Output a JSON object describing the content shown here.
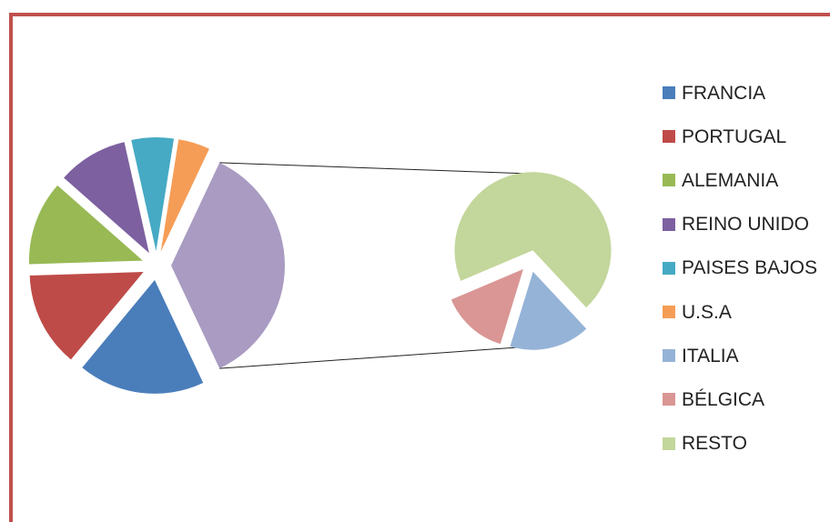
{
  "chart_data": {
    "type": "pie",
    "subtype": "bar-of-pie (pie of pie)",
    "categories": [
      "FRANCIA",
      "PORTUGAL",
      "ALEMANIA",
      "REINO UNIDO",
      "PAISES BAJOS",
      "U.S.A",
      "ITALIA",
      "BÉLGICA",
      "RESTO"
    ],
    "values": [
      18,
      13.5,
      12,
      10,
      6,
      4.5,
      6,
      5,
      25
    ],
    "secondary_categories": [
      "ITALIA",
      "BÉLGICA",
      "RESTO"
    ],
    "colors": [
      "#4a7ebb",
      "#be4b48",
      "#98b954",
      "#7d60a0",
      "#46aac4",
      "#f59d56",
      "#95b3d7",
      "#d99694",
      "#c3d69b"
    ],
    "other_color": "#a99bc1",
    "legend_position": "right",
    "exploded": true
  }
}
